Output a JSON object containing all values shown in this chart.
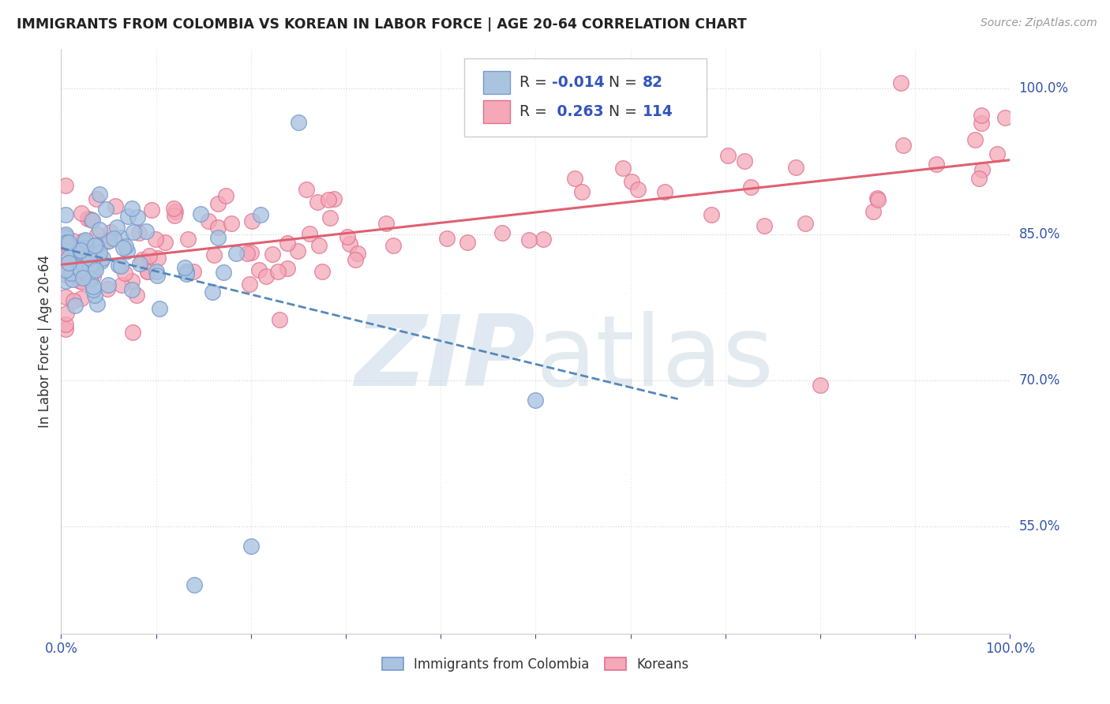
{
  "title": "IMMIGRANTS FROM COLOMBIA VS KOREAN IN LABOR FORCE | AGE 20-64 CORRELATION CHART",
  "source": "Source: ZipAtlas.com",
  "ylabel": "In Labor Force | Age 20-64",
  "xlim": [
    0.0,
    1.0
  ],
  "ylim": [
    0.44,
    1.04
  ],
  "x_tick_labels": [
    "0.0%",
    "",
    "",
    "",
    "",
    "",
    "",
    "",
    "",
    "",
    "100.0%"
  ],
  "x_tick_vals": [
    0.0,
    0.1,
    0.2,
    0.3,
    0.4,
    0.5,
    0.6,
    0.7,
    0.8,
    0.9,
    1.0
  ],
  "y_tick_right_labels": [
    "55.0%",
    "70.0%",
    "85.0%",
    "100.0%"
  ],
  "y_tick_right_values": [
    0.55,
    0.7,
    0.85,
    1.0
  ],
  "colombia_R": -0.014,
  "colombia_N": 82,
  "korean_R": 0.263,
  "korean_N": 114,
  "colombia_color": "#aac4e0",
  "korean_color": "#f4a8b8",
  "colombia_edge_color": "#7799cc",
  "korean_edge_color": "#e07090",
  "colombia_line_color": "#5588bb",
  "korean_line_color": "#e06070",
  "watermark_zip_color": "#c8d8e8",
  "watermark_atlas_color": "#b8ccd8",
  "title_color": "#222222",
  "source_color": "#999999",
  "axis_label_color": "#333333",
  "tick_color": "#3355aa",
  "grid_color": "#cccccc",
  "legend_text_color": "#333333",
  "legend_value_color": "#3355bb"
}
